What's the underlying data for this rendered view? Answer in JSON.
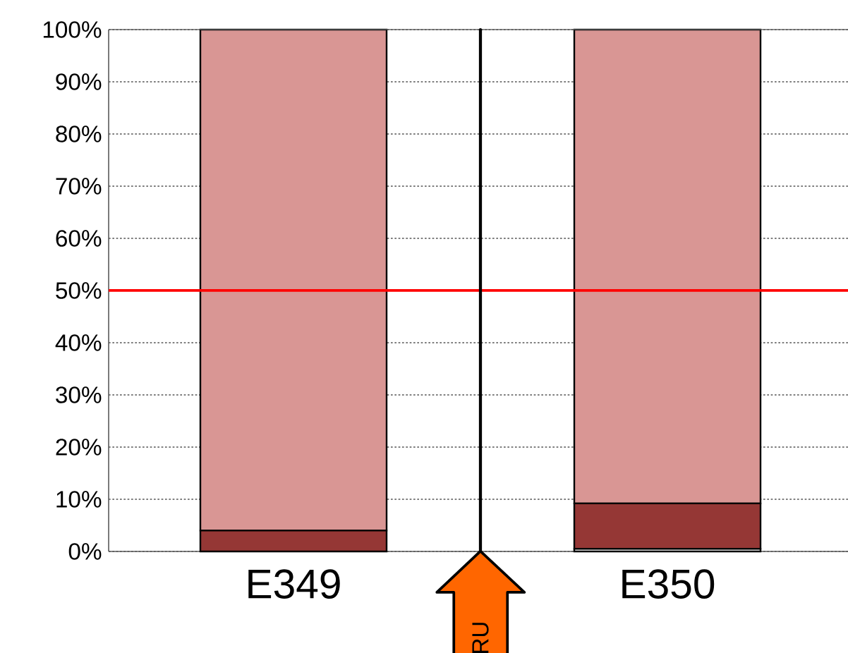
{
  "chart_data": {
    "type": "bar",
    "stacked": true,
    "categories": [
      "E349",
      "E350"
    ],
    "series": [
      {
        "color": "#ffffff",
        "values": [
          0,
          0.5
        ]
      },
      {
        "color": "#953735",
        "values": [
          4,
          8.7
        ]
      },
      {
        "color": "#d99694",
        "values": [
          96,
          90.8
        ]
      }
    ],
    "ylim": [
      0,
      100
    ],
    "yticks": [
      {
        "value": 0,
        "label": "0%"
      },
      {
        "value": 10,
        "label": "10%"
      },
      {
        "value": 20,
        "label": "20%"
      },
      {
        "value": 30,
        "label": "30%"
      },
      {
        "value": 40,
        "label": "40%"
      },
      {
        "value": 50,
        "label": "50%"
      },
      {
        "value": 60,
        "label": "60%"
      },
      {
        "value": 70,
        "label": "70%"
      },
      {
        "value": 80,
        "label": "80%"
      },
      {
        "value": 90,
        "label": "90%"
      },
      {
        "value": 100,
        "label": "100%"
      }
    ],
    "grid": "y",
    "ref_lines": [
      {
        "axis": "y",
        "value": 50,
        "color": "#ff0000"
      }
    ],
    "annotations": [
      "RU"
    ]
  }
}
